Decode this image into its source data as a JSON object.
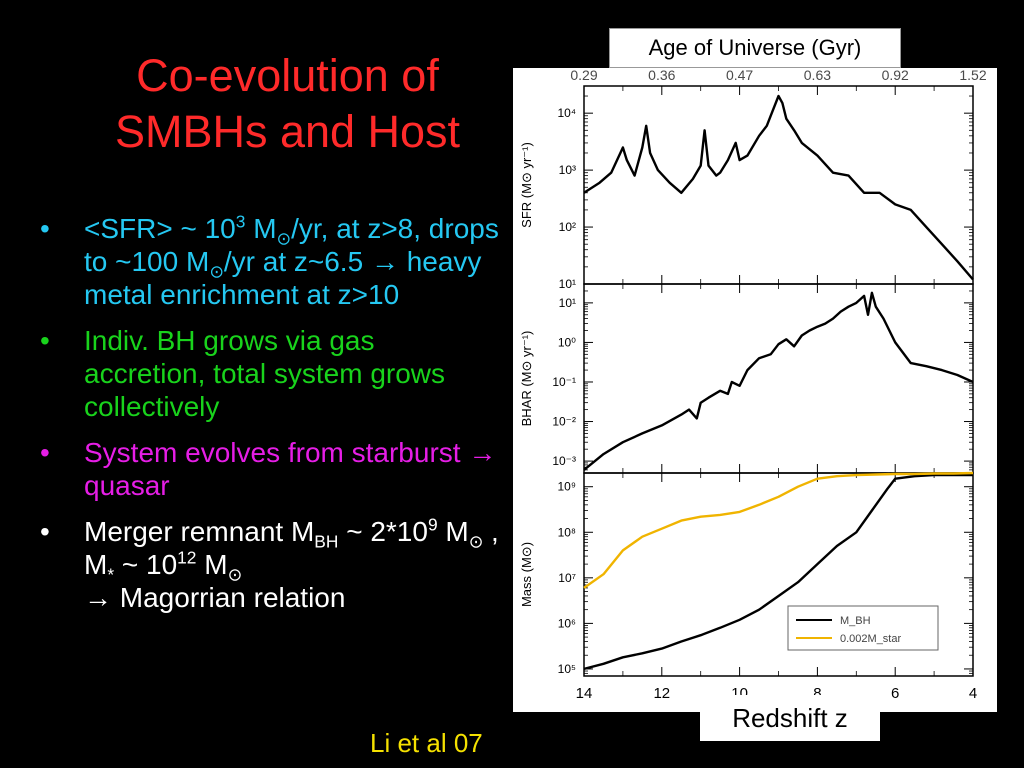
{
  "title": {
    "line1": "Co-evolution of",
    "line2": "SMBHs and Host"
  },
  "bullets": [
    {
      "marker": "•",
      "color": "#25c8f2",
      "parts": {
        "a": "<SFR> ~ 10",
        "a_sup": "3",
        "b": " M",
        "sun1": "⊙",
        "c": "/yr, at z>8, drops to ~100 M",
        "sun2": "⊙",
        "d": "/yr at z~6.5 ",
        "arrow": "→",
        "e": " heavy metal enrichment at z>10"
      }
    },
    {
      "marker": "•",
      "color": "#19d31c",
      "text": "Indiv. BH grows via gas accretion, total system grows collectively"
    },
    {
      "marker": "•",
      "color": "#e61ee6",
      "parts": {
        "a": "System evolves from starburst ",
        "arrow": "→",
        "b": " quasar"
      }
    },
    {
      "marker": "•",
      "color": "#ffffff",
      "parts": {
        "a": "Merger remnant M",
        "a_sub": "BH",
        "b": " ~ 2*10",
        "b_sup": "9",
        "c": " M",
        "sun1": "⊙",
        "d": " , M",
        "d_sub": "*",
        "e": " ~ 10",
        "e_sup": "12",
        "f": " M",
        "sun2": "⊙",
        "arrow": "→",
        "g": " Magorrian relation"
      }
    }
  ],
  "citation": "Li et al 07",
  "top_axis_title": "Age of Universe (Gyr)",
  "bottom_axis_title": "Redshift z",
  "colors": {
    "title": "#ff2a2a",
    "citation": "#f5e100",
    "mstar_line": "#f0b400",
    "mbh_line": "#000000"
  },
  "chart_data": [
    {
      "type": "line",
      "ylabel": "SFR (M⊙ yr⁻¹)",
      "yscale": "log",
      "ylim": [
        10,
        30000
      ],
      "xlim": [
        14,
        4
      ],
      "x_tick_labels": [
        "14",
        "12",
        "10",
        "8",
        "6",
        "4"
      ],
      "x_ticks": [
        14,
        12,
        10,
        8,
        6,
        4
      ],
      "top_tick_labels": [
        "0.29",
        "0.36",
        "0.47",
        "0.63",
        "0.92",
        "1.52"
      ],
      "y_tick_labels": [
        "10¹",
        "10²",
        "10³",
        "10⁴"
      ],
      "y_ticks": [
        10,
        100,
        1000,
        10000
      ],
      "series": [
        {
          "color": "#000000",
          "x": [
            14,
            13.6,
            13.3,
            13.0,
            12.9,
            12.7,
            12.5,
            12.4,
            12.3,
            12.1,
            11.8,
            11.5,
            11.2,
            11.0,
            10.9,
            10.8,
            10.6,
            10.5,
            10.3,
            10.1,
            10.0,
            9.8,
            9.5,
            9.3,
            9.2,
            9.0,
            8.9,
            8.8,
            8.6,
            8.4,
            8.0,
            7.6,
            7.2,
            6.8,
            6.4,
            6.0,
            5.6,
            5.2,
            4.8,
            4.4,
            4.0
          ],
          "y": [
            400,
            600,
            900,
            2500,
            1500,
            800,
            2500,
            6000,
            2000,
            1000,
            600,
            400,
            700,
            1200,
            5000,
            1200,
            800,
            900,
            1500,
            3000,
            1500,
            1800,
            4000,
            6000,
            9000,
            20000,
            15000,
            8000,
            5000,
            3000,
            1800,
            900,
            800,
            400,
            400,
            250,
            200,
            100,
            50,
            25,
            12
          ]
        }
      ]
    },
    {
      "type": "line",
      "ylabel": "BHAR (M⊙ yr⁻¹)",
      "yscale": "log",
      "ylim": [
        0.0005,
        30
      ],
      "xlim": [
        14,
        4
      ],
      "x_ticks": [
        14,
        12,
        10,
        8,
        6,
        4
      ],
      "y_tick_labels": [
        "10⁻³",
        "10⁻²",
        "10⁻¹",
        "10⁰",
        "10¹"
      ],
      "y_ticks": [
        0.001,
        0.01,
        0.1,
        1,
        10
      ],
      "series": [
        {
          "color": "#000000",
          "x": [
            14,
            13.5,
            13,
            12.5,
            12,
            11.5,
            11.3,
            11.1,
            11,
            10.8,
            10.5,
            10.3,
            10.2,
            10.0,
            9.8,
            9.5,
            9.2,
            9.0,
            8.8,
            8.6,
            8.4,
            8.2,
            8.0,
            7.8,
            7.6,
            7.4,
            7.2,
            7.0,
            6.8,
            6.7,
            6.6,
            6.5,
            6.3,
            6.0,
            5.6,
            5.2,
            4.8,
            4.4,
            4.0
          ],
          "y": [
            0.0006,
            0.0015,
            0.003,
            0.005,
            0.008,
            0.015,
            0.02,
            0.012,
            0.03,
            0.04,
            0.06,
            0.05,
            0.1,
            0.08,
            0.2,
            0.4,
            0.5,
            0.9,
            1.2,
            0.8,
            1.5,
            2.0,
            2.5,
            3.0,
            4.0,
            6.0,
            8.0,
            10.0,
            15.0,
            5.0,
            18.0,
            8.0,
            4.0,
            1.0,
            0.3,
            0.25,
            0.2,
            0.15,
            0.1
          ]
        }
      ]
    },
    {
      "type": "line",
      "ylabel": "Mass (M⊙)",
      "yscale": "log",
      "ylim": [
        70000,
        2000000000
      ],
      "xlim": [
        14,
        4
      ],
      "x_tick_labels": [
        "14",
        "12",
        "10",
        "8",
        "6",
        "4"
      ],
      "x_ticks": [
        14,
        12,
        10,
        8,
        6,
        4
      ],
      "y_tick_labels": [
        "10⁵",
        "10⁶",
        "10⁷",
        "10⁸",
        "10⁹"
      ],
      "y_ticks": [
        100000,
        1000000,
        10000000,
        100000000,
        1000000000
      ],
      "legend_position": "lower-right",
      "series": [
        {
          "name": "M_BH",
          "color": "#000000",
          "x": [
            14,
            13.5,
            13,
            12.5,
            12,
            11.5,
            11,
            10.5,
            10,
            9.5,
            9,
            8.5,
            8,
            7.5,
            7,
            6.6,
            6.2,
            6,
            5.5,
            5,
            4.5,
            4
          ],
          "y": [
            100000,
            130000,
            180000,
            220000,
            280000,
            400000,
            550000,
            800000,
            1200000,
            2000000,
            4000000,
            8000000,
            20000000,
            50000000,
            100000000,
            300000000,
            900000000,
            1500000000,
            1700000000,
            1800000000,
            1800000000,
            1800000000
          ]
        },
        {
          "name": "0.002M_star",
          "color": "#f0b400",
          "x": [
            14,
            13.5,
            13,
            12.5,
            12,
            11.5,
            11,
            10.5,
            10,
            9.5,
            9,
            8.5,
            8,
            7.5,
            7,
            6.5,
            6,
            5.5,
            5,
            4.5,
            4
          ],
          "y": [
            6000000,
            12000000,
            40000000,
            80000000,
            120000000,
            180000000,
            220000000,
            240000000,
            280000000,
            400000000,
            600000000,
            1000000000,
            1500000000,
            1700000000,
            1800000000,
            1850000000,
            1900000000,
            1900000000,
            1950000000,
            1950000000,
            2000000000
          ]
        }
      ]
    }
  ]
}
